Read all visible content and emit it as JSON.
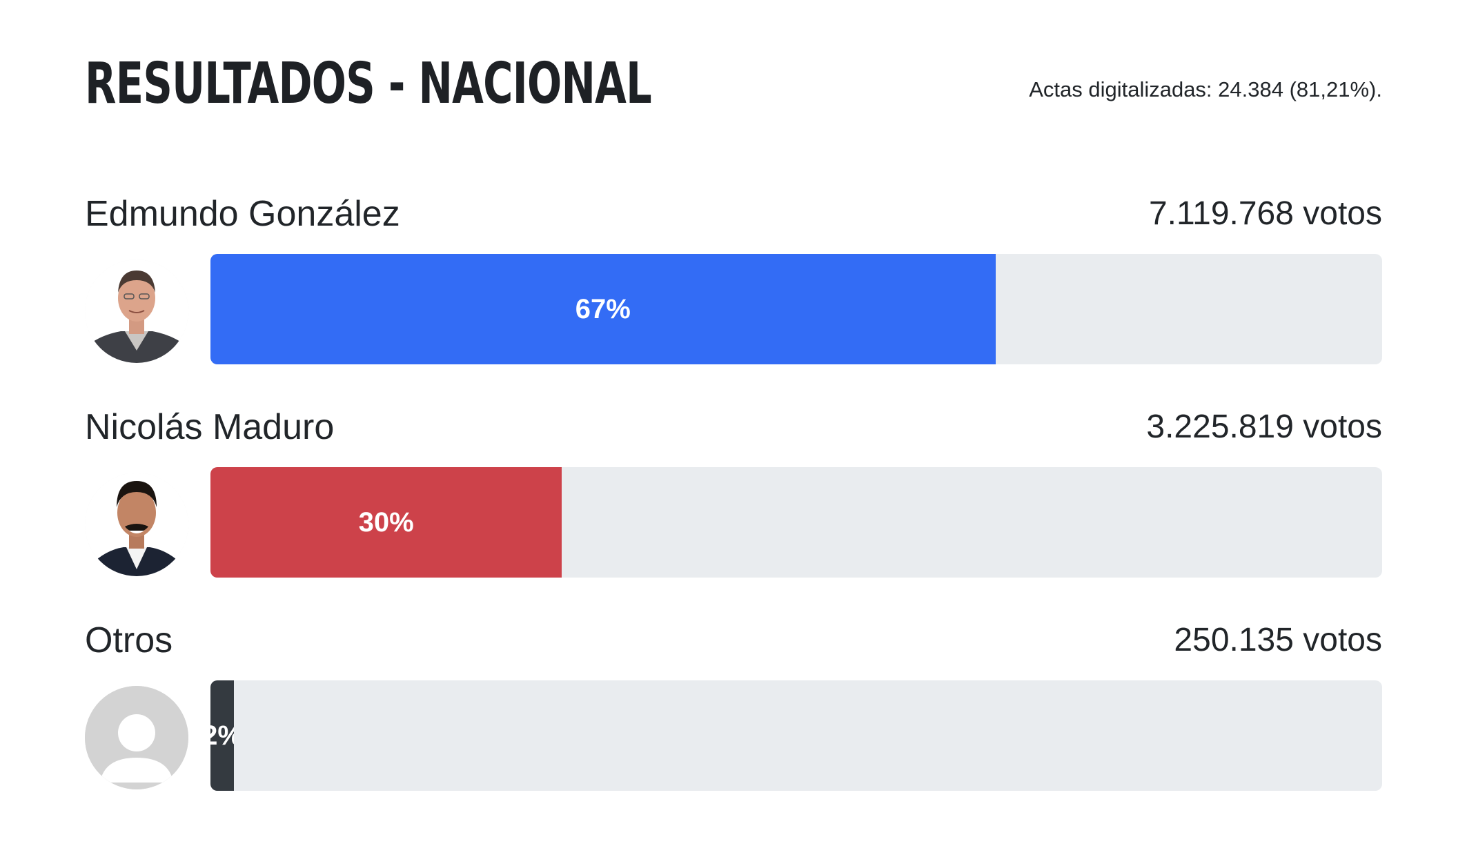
{
  "header": {
    "title": "RESULTADOS - NACIONAL",
    "actas": "Actas digitalizadas: 24.384 (81,21%)."
  },
  "candidates": [
    {
      "name": "Edmundo González",
      "votes": "7.119.768 votos",
      "percent_label": "67%",
      "share": 0.67,
      "color": "#336cf5",
      "avatar": "edmundo-gonzalez-photo"
    },
    {
      "name": "Nicolás Maduro",
      "votes": "3.225.819 votos",
      "percent_label": "30%",
      "share": 0.3,
      "color": "#cd424a",
      "avatar": "nicolas-maduro-photo"
    },
    {
      "name": "Otros",
      "votes": "250.135 votos",
      "percent_label": "2%",
      "share": 0.02,
      "color": "#343a40",
      "avatar": "default-user-icon"
    }
  ]
}
